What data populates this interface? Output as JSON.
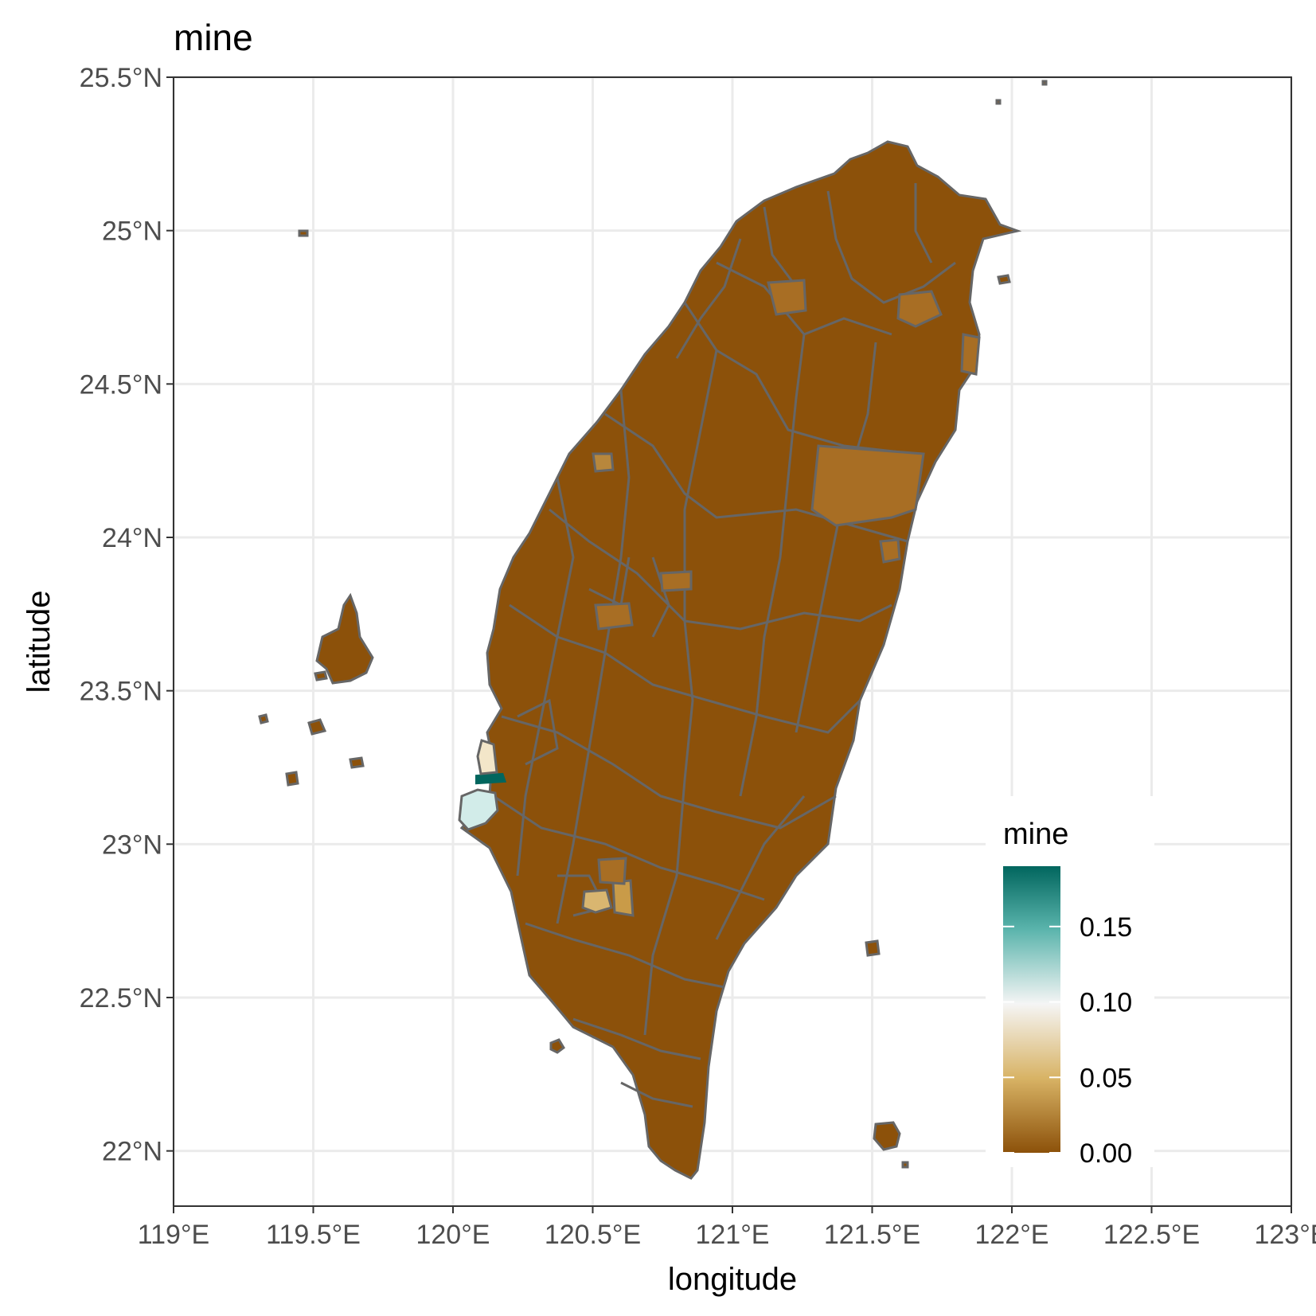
{
  "title": "mine",
  "chart_data": {
    "type": "choropleth-map",
    "title": "mine",
    "xlabel": "longitude",
    "ylabel": "latitude",
    "xlim": [
      119,
      123
    ],
    "ylim": [
      21.82,
      25.5
    ],
    "x_ticks": [
      119,
      119.5,
      120,
      120.5,
      121,
      121.5,
      122,
      122.5,
      123
    ],
    "x_tick_labels": [
      "119°E",
      "119.5°E",
      "120°E",
      "120.5°E",
      "121°E",
      "121.5°E",
      "122°E",
      "122.5°E",
      "123°E"
    ],
    "y_ticks": [
      22,
      22.5,
      23,
      23.5,
      24,
      24.5,
      25,
      25.5
    ],
    "y_tick_labels": [
      "22°N",
      "22.5°N",
      "23°N",
      "23.5°N",
      "24°N",
      "24.5°N",
      "25°N",
      "25.5°N"
    ],
    "grid": true,
    "legend": {
      "title": "mine",
      "position": "bottom-right",
      "range": [
        0,
        0.19
      ],
      "breaks": [
        0.0,
        0.05,
        0.1,
        0.15
      ],
      "labels": [
        "0.00",
        "0.05",
        "0.10",
        "0.15"
      ],
      "colors": [
        "#8c510a",
        "#d8b365",
        "#f5f5f5",
        "#5ab4ac",
        "#01665e"
      ]
    },
    "base_color": "#8c510a",
    "border_color": "#666666",
    "highlighted_regions": [
      {
        "lon": 120.07,
        "lat": 23.1,
        "value": 0.11,
        "color": "#d2ece9"
      },
      {
        "lon": 120.14,
        "lat": 23.2,
        "value": 0.19,
        "color": "#01665e"
      },
      {
        "lon": 120.12,
        "lat": 23.3,
        "value": 0.08,
        "color": "#f3e6c9"
      },
      {
        "lon": 120.55,
        "lat": 22.78,
        "value": 0.05,
        "color": "#d9b670"
      },
      {
        "lon": 120.64,
        "lat": 22.76,
        "value": 0.04,
        "color": "#c99b48"
      },
      {
        "lon": 120.57,
        "lat": 23.68,
        "value": 0.02,
        "color": "#a86e24"
      },
      {
        "lon": 120.79,
        "lat": 23.86,
        "value": 0.02,
        "color": "#a86e24"
      },
      {
        "lon": 120.5,
        "lat": 24.25,
        "value": 0.03,
        "color": "#b8873c"
      },
      {
        "lon": 121.12,
        "lat": 24.77,
        "value": 0.03,
        "color": "#b8873c"
      },
      {
        "lon": 121.72,
        "lat": 24.74,
        "value": 0.02,
        "color": "#a06a22"
      },
      {
        "lon": 121.57,
        "lat": 23.94,
        "value": 0.02,
        "color": "#a86e24"
      },
      {
        "lon": 121.93,
        "lat": 24.56,
        "value": 0.02,
        "color": "#a86e24"
      },
      {
        "lon": 120.62,
        "lat": 24.43,
        "value": 0.02,
        "color": "#a86e24"
      }
    ]
  }
}
